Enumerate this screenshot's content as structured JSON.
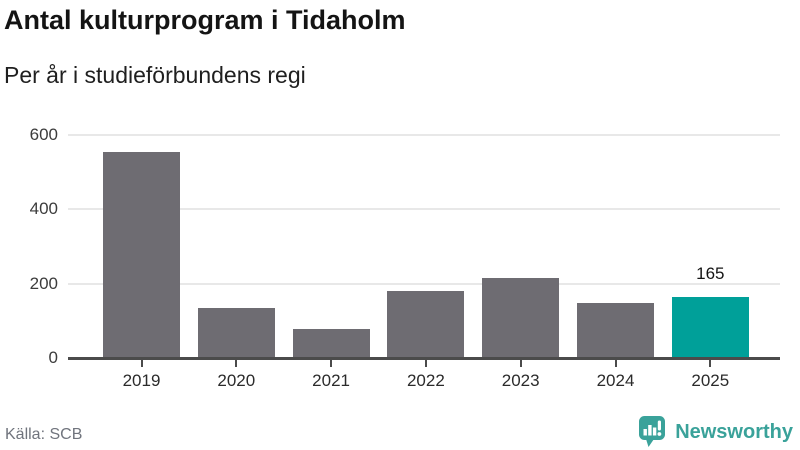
{
  "header": {
    "title": "Antal kulturprogram i Tidaholm",
    "subtitle": "Per år i studieförbundens regi"
  },
  "footer": {
    "source": "Källa: SCB",
    "brand": "Newsworthy"
  },
  "colors": {
    "bar": "#6e6c72",
    "highlight": "#00a099",
    "axis": "#4b4b4b",
    "grid": "#e8e8e8",
    "brand_teal": "#3aa29a"
  },
  "chart_data": {
    "type": "bar",
    "title": "Antal kulturprogram i Tidaholm",
    "subtitle": "Per år i studieförbundens regi",
    "categories": [
      "2019",
      "2020",
      "2021",
      "2022",
      "2023",
      "2024",
      "2025"
    ],
    "values": [
      555,
      135,
      78,
      180,
      215,
      148,
      165
    ],
    "highlight_index": 6,
    "value_labels": {
      "6": "165"
    },
    "xlabel": "",
    "ylabel": "",
    "ylim": [
      0,
      600
    ],
    "yticks": [
      0,
      200,
      400,
      600
    ],
    "grid": true,
    "legend": false,
    "source": "Källa: SCB"
  }
}
